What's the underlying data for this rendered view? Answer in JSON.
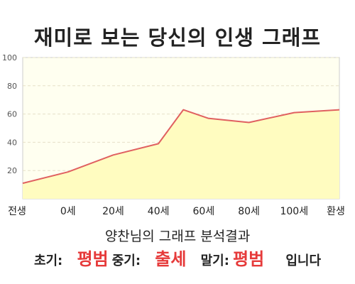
{
  "header": {
    "title": "재미로 보는 당신의 인생 그래프"
  },
  "chart_data": {
    "type": "area",
    "x": [
      "전생",
      "0세",
      "20세",
      "40세",
      "60세",
      "80세",
      "100세",
      "환생"
    ],
    "points": [
      [
        0,
        11
      ],
      [
        1,
        19
      ],
      [
        2,
        31
      ],
      [
        3,
        39
      ],
      [
        3.55,
        63
      ],
      [
        4.1,
        57
      ],
      [
        5,
        54
      ],
      [
        6,
        61
      ],
      [
        7,
        63
      ]
    ],
    "yticks": [
      20,
      40,
      60,
      80,
      100
    ],
    "ylim": [
      0,
      100
    ],
    "grid": true,
    "colors": {
      "line": "#e06060",
      "fill": "#fffcc0",
      "plot_bg": "#fffff0",
      "grid": "#e6e0c8"
    }
  },
  "summary": {
    "text": "양찬님의 그래프 분석결과",
    "early_label": "초기:",
    "early_value": "평범",
    "mid_label": "중기:",
    "mid_value": "출세",
    "late_label": "말기:",
    "late_value": "평범",
    "ending": "입니다"
  }
}
